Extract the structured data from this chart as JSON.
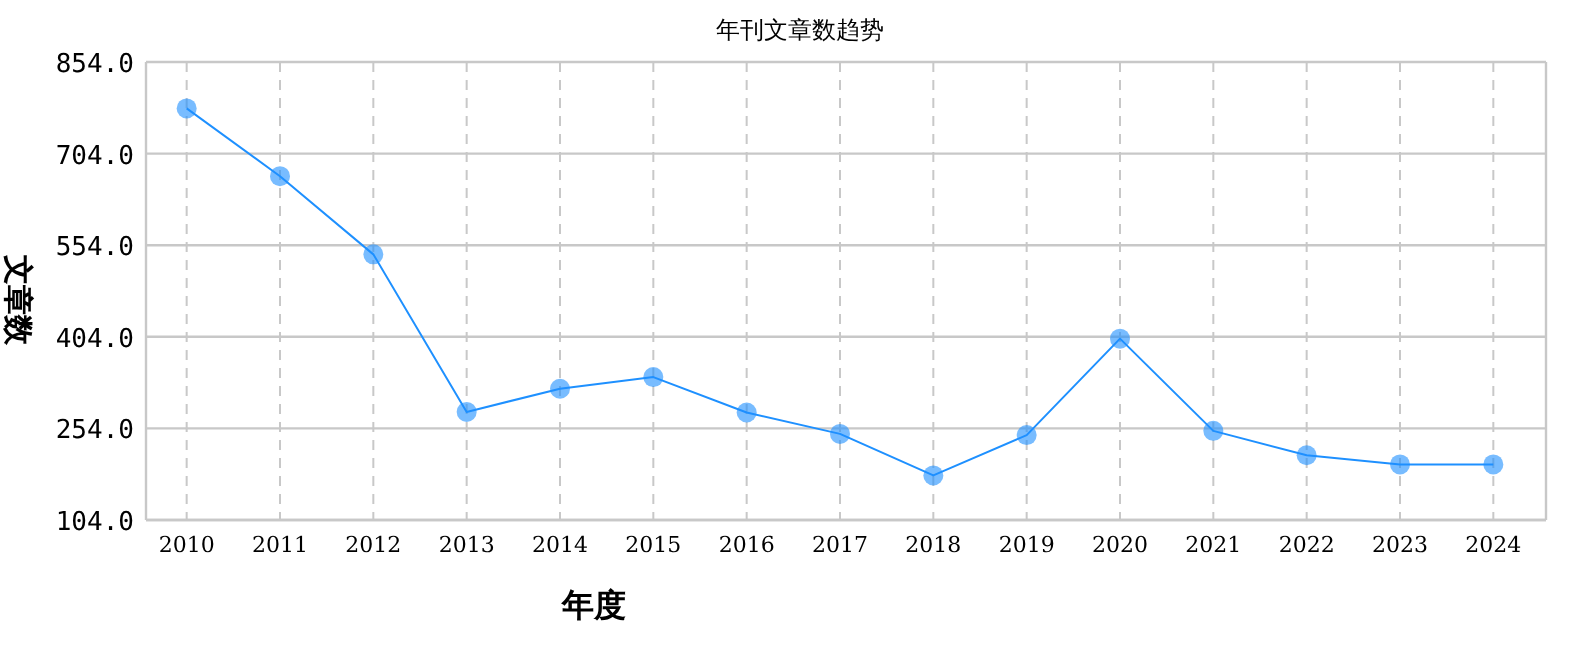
{
  "chart_data": {
    "type": "line",
    "title": "年刊文章数趋势",
    "xlabel": "年度",
    "ylabel": "文章数",
    "categories": [
      "2010",
      "2011",
      "2012",
      "2013",
      "2014",
      "2015",
      "2016",
      "2017",
      "2018",
      "2019",
      "2020",
      "2021",
      "2022",
      "2023",
      "2024"
    ],
    "series": [
      {
        "color": "#1e90ff",
        "values": [
          778,
          667,
          539,
          281,
          319,
          338,
          280,
          245,
          177,
          243,
          401,
          250,
          210,
          195,
          195
        ]
      }
    ],
    "ylim": [
      104,
      854
    ],
    "yticks": [
      {
        "value": 104,
        "label": "104.0"
      },
      {
        "value": 254,
        "label": "254.0"
      },
      {
        "value": 404,
        "label": "404.0"
      },
      {
        "value": 554,
        "label": "554.0"
      },
      {
        "value": 704,
        "label": "704.0"
      },
      {
        "value": 854,
        "label": "854.0"
      }
    ],
    "grid": true,
    "marker": "circle",
    "line_style": "solid"
  }
}
